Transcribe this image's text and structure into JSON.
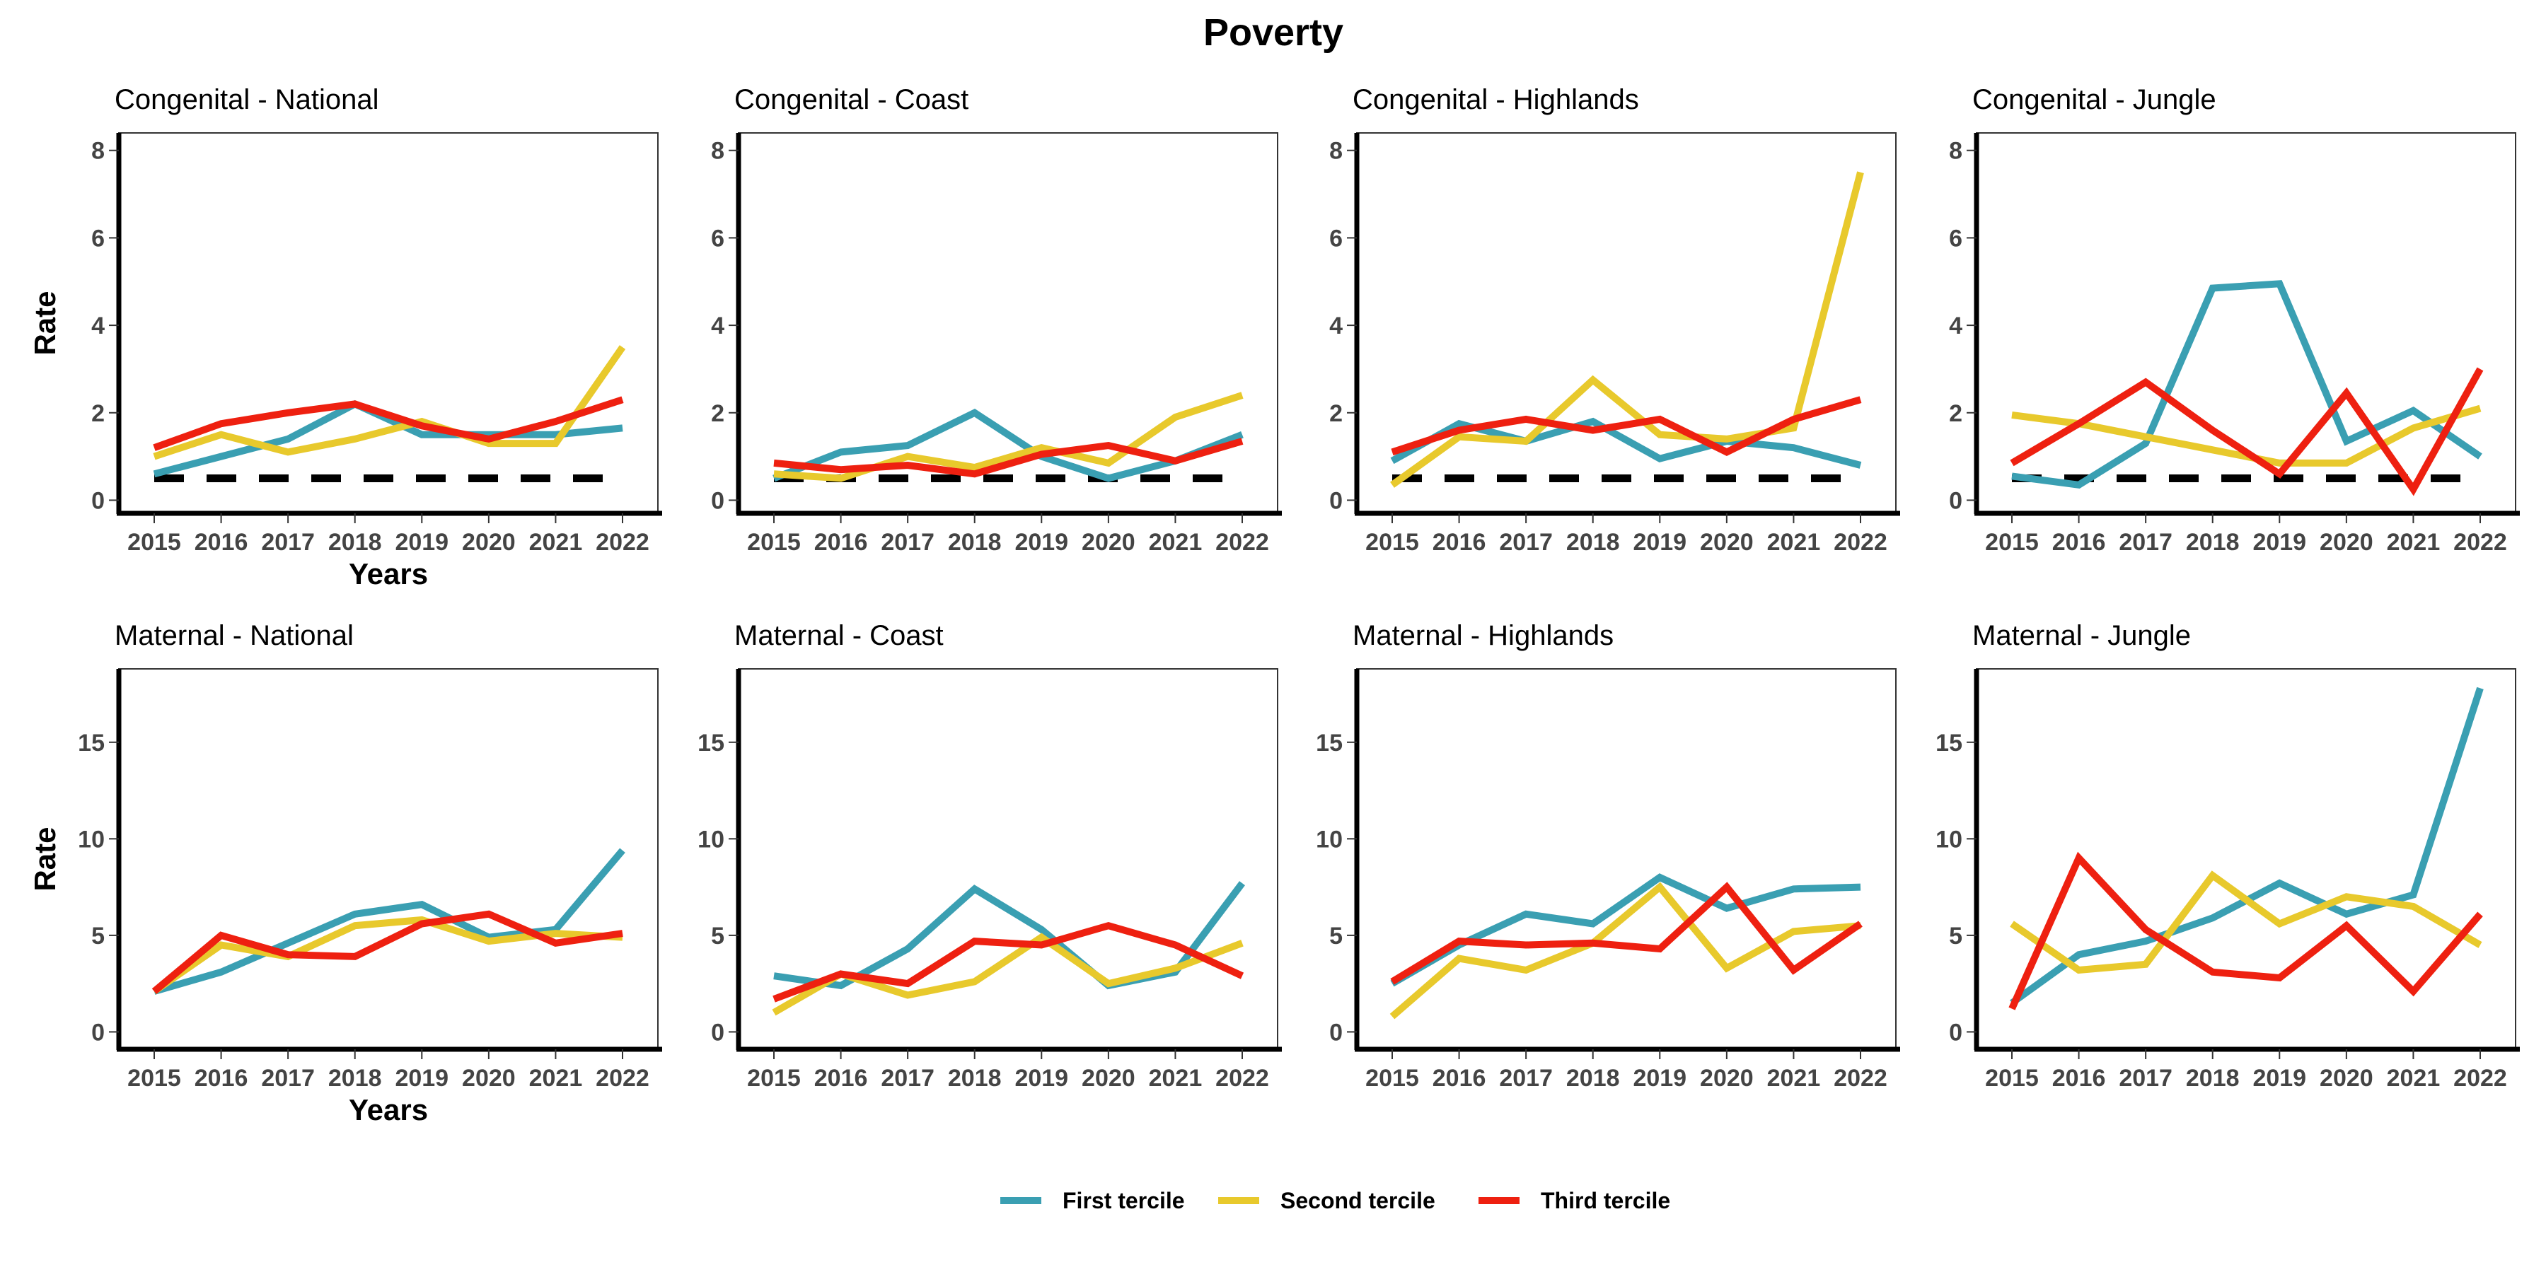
{
  "title": "Poverty",
  "colors": {
    "First tercile": "#3a9fb2",
    "Second tercile": "#e8c92c",
    "Third tercile": "#ee2010",
    "reference": "#000000"
  },
  "legend": {
    "placement": "bottom",
    "items": [
      "First tercile",
      "Second tercile",
      "Third tercile"
    ]
  },
  "chart_data": [
    {
      "type": "line",
      "title": "Congenital - National",
      "x": [
        2015,
        2016,
        2017,
        2018,
        2019,
        2020,
        2021,
        2022
      ],
      "ylabel": "Rate",
      "xlabel": "Years",
      "ylim": [
        -0.3,
        8.4
      ],
      "yticks": [
        0,
        2,
        4,
        6,
        8
      ],
      "reference_line": 0.5,
      "series": [
        {
          "name": "First tercile",
          "values": [
            0.6,
            1.0,
            1.4,
            2.2,
            1.5,
            1.5,
            1.5,
            1.65
          ]
        },
        {
          "name": "Second tercile",
          "values": [
            1.0,
            1.5,
            1.1,
            1.4,
            1.8,
            1.3,
            1.3,
            3.5
          ]
        },
        {
          "name": "Third tercile",
          "values": [
            1.2,
            1.75,
            2.0,
            2.2,
            1.7,
            1.4,
            1.8,
            2.3
          ]
        }
      ]
    },
    {
      "type": "line",
      "title": "Congenital - Coast",
      "x": [
        2015,
        2016,
        2017,
        2018,
        2019,
        2020,
        2021,
        2022
      ],
      "ylabel": "",
      "xlabel": "",
      "ylim": [
        -0.3,
        8.4
      ],
      "yticks": [
        0,
        2,
        4,
        6,
        8
      ],
      "reference_line": 0.5,
      "series": [
        {
          "name": "First tercile",
          "values": [
            0.5,
            1.1,
            1.25,
            2.0,
            1.0,
            0.5,
            0.9,
            1.5
          ]
        },
        {
          "name": "Second tercile",
          "values": [
            0.6,
            0.5,
            1.0,
            0.75,
            1.2,
            0.85,
            1.9,
            2.4
          ]
        },
        {
          "name": "Third tercile",
          "values": [
            0.85,
            0.7,
            0.8,
            0.6,
            1.05,
            1.25,
            0.9,
            1.35
          ]
        }
      ]
    },
    {
      "type": "line",
      "title": "Congenital - Highlands",
      "x": [
        2015,
        2016,
        2017,
        2018,
        2019,
        2020,
        2021,
        2022
      ],
      "ylabel": "",
      "xlabel": "",
      "ylim": [
        -0.3,
        8.4
      ],
      "yticks": [
        0,
        2,
        4,
        6,
        8
      ],
      "reference_line": 0.5,
      "series": [
        {
          "name": "First tercile",
          "values": [
            0.9,
            1.75,
            1.35,
            1.8,
            0.95,
            1.35,
            1.2,
            0.8
          ]
        },
        {
          "name": "Second tercile",
          "values": [
            0.35,
            1.45,
            1.35,
            2.75,
            1.5,
            1.4,
            1.65,
            7.5
          ]
        },
        {
          "name": "Third tercile",
          "values": [
            1.1,
            1.6,
            1.85,
            1.6,
            1.85,
            1.1,
            1.85,
            2.3
          ]
        }
      ]
    },
    {
      "type": "line",
      "title": "Congenital - Jungle",
      "x": [
        2015,
        2016,
        2017,
        2018,
        2019,
        2020,
        2021,
        2022
      ],
      "ylabel": "",
      "xlabel": "",
      "ylim": [
        -0.3,
        8.4
      ],
      "yticks": [
        0,
        2,
        4,
        6,
        8
      ],
      "reference_line": 0.5,
      "series": [
        {
          "name": "First tercile",
          "values": [
            0.55,
            0.35,
            1.3,
            4.85,
            4.95,
            1.35,
            2.05,
            1.0
          ]
        },
        {
          "name": "Second tercile",
          "values": [
            1.95,
            1.75,
            1.45,
            1.15,
            0.85,
            0.85,
            1.65,
            2.1
          ]
        },
        {
          "name": "Third tercile",
          "values": [
            0.85,
            1.75,
            2.7,
            1.6,
            0.6,
            2.45,
            0.25,
            3.0
          ]
        }
      ]
    },
    {
      "type": "line",
      "title": "Maternal - National",
      "x": [
        2015,
        2016,
        2017,
        2018,
        2019,
        2020,
        2021,
        2022
      ],
      "ylabel": "Rate",
      "xlabel": "Years",
      "ylim": [
        -0.9,
        18.8
      ],
      "yticks": [
        0,
        5,
        10,
        15
      ],
      "series": [
        {
          "name": "First tercile",
          "values": [
            2.1,
            3.1,
            4.6,
            6.1,
            6.6,
            4.9,
            5.3,
            9.4
          ]
        },
        {
          "name": "Second tercile",
          "values": [
            2.1,
            4.5,
            3.9,
            5.5,
            5.8,
            4.7,
            5.1,
            4.9
          ]
        },
        {
          "name": "Third tercile",
          "values": [
            2.1,
            5.0,
            4.0,
            3.9,
            5.6,
            6.1,
            4.6,
            5.1
          ]
        }
      ]
    },
    {
      "type": "line",
      "title": "Maternal - Coast",
      "x": [
        2015,
        2016,
        2017,
        2018,
        2019,
        2020,
        2021,
        2022
      ],
      "ylabel": "",
      "xlabel": "",
      "ylim": [
        -0.9,
        18.8
      ],
      "yticks": [
        0,
        5,
        10,
        15
      ],
      "series": [
        {
          "name": "First tercile",
          "values": [
            2.9,
            2.4,
            4.3,
            7.4,
            5.3,
            2.4,
            3.1,
            7.7
          ]
        },
        {
          "name": "Second tercile",
          "values": [
            1.0,
            3.0,
            1.9,
            2.6,
            4.9,
            2.5,
            3.3,
            4.6
          ]
        },
        {
          "name": "Third tercile",
          "values": [
            1.7,
            3.0,
            2.5,
            4.7,
            4.5,
            5.5,
            4.5,
            2.9
          ]
        }
      ]
    },
    {
      "type": "line",
      "title": "Maternal - Highlands",
      "x": [
        2015,
        2016,
        2017,
        2018,
        2019,
        2020,
        2021,
        2022
      ],
      "ylabel": "",
      "xlabel": "",
      "ylim": [
        -0.9,
        18.8
      ],
      "yticks": [
        0,
        5,
        10,
        15
      ],
      "series": [
        {
          "name": "First tercile",
          "values": [
            2.5,
            4.5,
            6.1,
            5.6,
            8.0,
            6.4,
            7.4,
            7.5
          ]
        },
        {
          "name": "Second tercile",
          "values": [
            0.8,
            3.8,
            3.2,
            4.6,
            7.5,
            3.3,
            5.2,
            5.5
          ]
        },
        {
          "name": "Third tercile",
          "values": [
            2.6,
            4.7,
            4.5,
            4.6,
            4.3,
            7.5,
            3.2,
            5.6
          ]
        }
      ]
    },
    {
      "type": "line",
      "title": "Maternal - Jungle",
      "x": [
        2015,
        2016,
        2017,
        2018,
        2019,
        2020,
        2021,
        2022
      ],
      "ylabel": "",
      "xlabel": "",
      "ylim": [
        -0.9,
        18.8
      ],
      "yticks": [
        0,
        5,
        10,
        15
      ],
      "series": [
        {
          "name": "First tercile",
          "values": [
            1.5,
            4.0,
            4.7,
            5.9,
            7.7,
            6.1,
            7.1,
            17.8
          ]
        },
        {
          "name": "Second tercile",
          "values": [
            5.6,
            3.2,
            3.5,
            8.1,
            5.6,
            7.0,
            6.5,
            4.5
          ]
        },
        {
          "name": "Third tercile",
          "values": [
            1.2,
            9.0,
            5.3,
            3.1,
            2.8,
            5.5,
            2.1,
            6.1
          ]
        }
      ]
    }
  ]
}
